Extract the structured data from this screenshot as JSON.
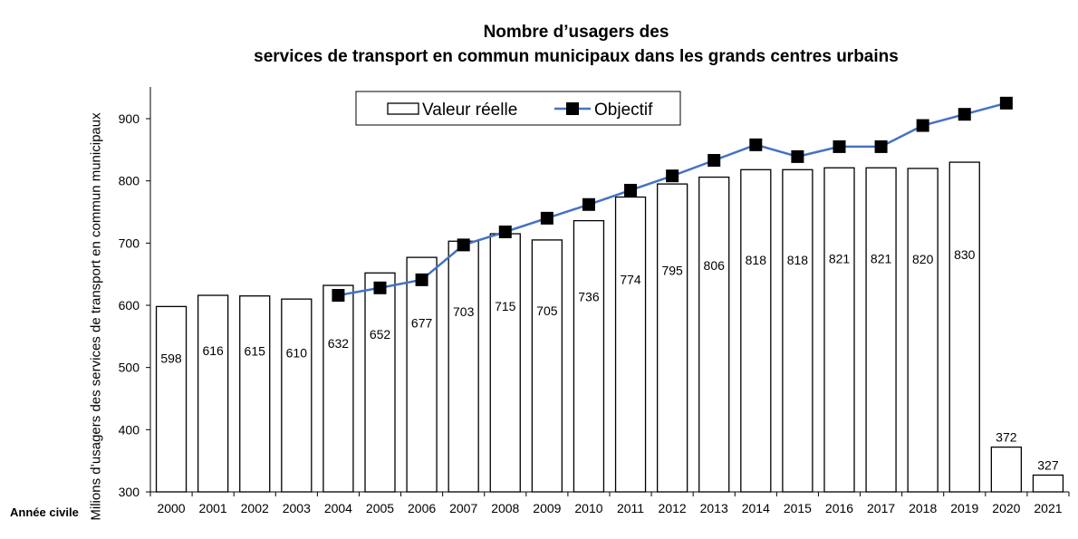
{
  "chart_data": {
    "type": "bar",
    "title": [
      "Nombre d’usagers des",
      "services de transport en commun municipaux dans les grands centres urbains"
    ],
    "ylabel": "Milions d’usagers des services de transport  en commun municipaux",
    "xlabel": "Année civile",
    "ylim": [
      300,
      950
    ],
    "yticks": [
      300,
      400,
      500,
      600,
      700,
      800,
      900
    ],
    "categories": [
      "2000",
      "2001",
      "2002",
      "2003",
      "2004",
      "2005",
      "2006",
      "2007",
      "2008",
      "2009",
      "2010",
      "2011",
      "2012",
      "2013",
      "2014",
      "2015",
      "2016",
      "2017",
      "2018",
      "2019",
      "2020",
      "2021"
    ],
    "series": [
      {
        "name": "Valeur réelle",
        "type": "bar",
        "values": [
          598,
          616,
          615,
          610,
          632,
          652,
          677,
          703,
          715,
          705,
          736,
          774,
          795,
          806,
          818,
          818,
          821,
          821,
          820,
          830,
          372,
          327
        ],
        "labels": [
          "598",
          "616",
          "615",
          "610",
          "632",
          "652",
          "677",
          "703",
          "715",
          "705",
          "736",
          "774",
          "795",
          "806",
          "818",
          "818",
          "821",
          "821",
          "820",
          "830",
          "372",
          "327"
        ]
      },
      {
        "name": "Objectif",
        "type": "line",
        "color": "#4472c4",
        "values": [
          null,
          null,
          null,
          null,
          616,
          628,
          641,
          697,
          718,
          740,
          762,
          785,
          808,
          833,
          858,
          839,
          855,
          855,
          889,
          907,
          925,
          null
        ]
      }
    ],
    "legend": "top-center",
    "grid": false
  }
}
